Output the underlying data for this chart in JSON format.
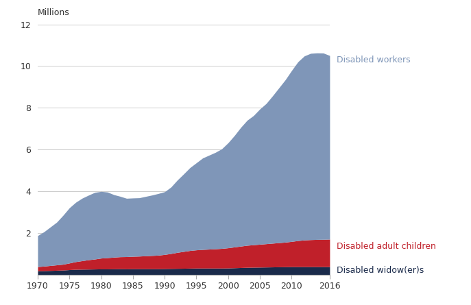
{
  "years": [
    1970,
    1971,
    1972,
    1973,
    1974,
    1975,
    1976,
    1977,
    1978,
    1979,
    1980,
    1981,
    1982,
    1983,
    1984,
    1985,
    1986,
    1987,
    1988,
    1989,
    1990,
    1991,
    1992,
    1993,
    1994,
    1995,
    1996,
    1997,
    1998,
    1999,
    2000,
    2001,
    2002,
    2003,
    2004,
    2005,
    2006,
    2007,
    2008,
    2009,
    2010,
    2011,
    2012,
    2013,
    2014,
    2015,
    2016
  ],
  "disabled_widowers": [
    0.175,
    0.18,
    0.19,
    0.2,
    0.21,
    0.23,
    0.245,
    0.25,
    0.255,
    0.26,
    0.265,
    0.265,
    0.27,
    0.275,
    0.27,
    0.275,
    0.275,
    0.275,
    0.275,
    0.275,
    0.28,
    0.285,
    0.29,
    0.295,
    0.3,
    0.305,
    0.305,
    0.305,
    0.305,
    0.305,
    0.31,
    0.32,
    0.33,
    0.34,
    0.345,
    0.35,
    0.355,
    0.36,
    0.365,
    0.37,
    0.375,
    0.375,
    0.375,
    0.375,
    0.375,
    0.375,
    0.375
  ],
  "disabled_adult_children": [
    0.2,
    0.22,
    0.24,
    0.26,
    0.28,
    0.32,
    0.37,
    0.41,
    0.45,
    0.48,
    0.52,
    0.54,
    0.56,
    0.575,
    0.585,
    0.595,
    0.605,
    0.62,
    0.635,
    0.65,
    0.68,
    0.72,
    0.77,
    0.81,
    0.85,
    0.875,
    0.895,
    0.91,
    0.925,
    0.945,
    0.97,
    1.0,
    1.03,
    1.06,
    1.08,
    1.1,
    1.12,
    1.14,
    1.16,
    1.18,
    1.21,
    1.25,
    1.28,
    1.295,
    1.305,
    1.31,
    1.32
  ],
  "disabled_workers": [
    1.49,
    1.65,
    1.85,
    2.05,
    2.35,
    2.65,
    2.85,
    3.0,
    3.1,
    3.2,
    3.2,
    3.15,
    3.0,
    2.9,
    2.8,
    2.8,
    2.8,
    2.85,
    2.9,
    2.96,
    3.01,
    3.19,
    3.47,
    3.72,
    3.98,
    4.18,
    4.39,
    4.51,
    4.63,
    4.78,
    5.04,
    5.35,
    5.7,
    6.0,
    6.2,
    6.49,
    6.73,
    7.07,
    7.43,
    7.79,
    8.2,
    8.58,
    8.83,
    8.94,
    8.95,
    8.94,
    8.81
  ],
  "color_workers": "#7f96b8",
  "color_adult_children": "#c0202a",
  "color_widowers": "#1a2a4a",
  "ylabel": "Millions",
  "ylim": [
    0,
    12
  ],
  "yticks": [
    0,
    2,
    4,
    6,
    8,
    10,
    12
  ],
  "xlim": [
    1970,
    2016
  ],
  "xticks": [
    1970,
    1975,
    1980,
    1985,
    1990,
    1995,
    2000,
    2005,
    2010,
    2016
  ],
  "label_workers": "Disabled workers",
  "label_adult_children": "Disabled adult children",
  "label_widowers": "Disabled widow(er)s",
  "label_workers_color": "#7f96b8",
  "label_adult_children_color": "#c0202a",
  "label_widowers_color": "#1a2a4a"
}
